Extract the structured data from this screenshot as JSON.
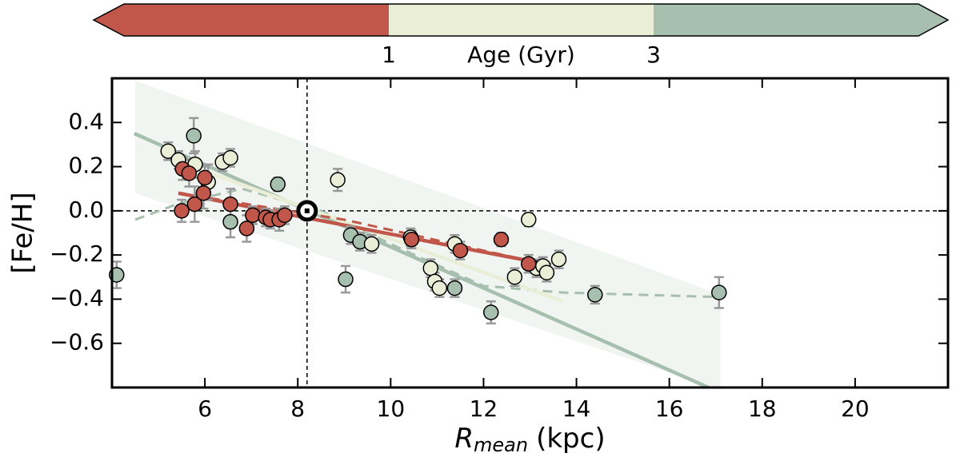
{
  "chart_data": {
    "type": "scatter",
    "xlabel": {
      "symbol": "R",
      "subscript": "mean",
      "unit": "(kpc)"
    },
    "ylabel": "[Fe/H]",
    "xlim": [
      4,
      22
    ],
    "ylim": [
      -0.8,
      0.6
    ],
    "xticks": [
      6,
      8,
      10,
      12,
      14,
      16,
      18,
      20
    ],
    "yticks": [
      -0.6,
      -0.4,
      -0.2,
      0.0,
      0.2,
      0.4
    ],
    "yticklabels_note_free": null,
    "colorbar": {
      "label": "Age (Gyr)",
      "colors": [
        "#c0574a",
        "#ebeed6",
        "#a6bfaf"
      ],
      "ticks": [
        1,
        3
      ]
    },
    "reference": {
      "x": 8.2,
      "y": 0
    },
    "sun": [
      8.2,
      0
    ],
    "band": {
      "color": "#e8eeea",
      "x": [
        4.5,
        17.1
      ],
      "lower": [
        0.08,
        -0.81
      ],
      "upper": [
        0.59,
        -0.38
      ]
    },
    "fits": [
      {
        "color": "#a6bfaf",
        "dash": false,
        "x": [
          4.48,
          16.95
        ],
        "values": [
          0.35,
          -0.81
        ]
      },
      {
        "color": "#a6bfaf",
        "dash": true,
        "x": [
          4.5,
          5.4,
          6.8,
          8.5,
          10.2,
          12.0,
          13.7,
          17.0
        ],
        "values": [
          -0.04,
          0.03,
          0.1,
          0.0,
          -0.17,
          -0.34,
          -0.37,
          -0.39
        ]
      },
      {
        "color": "#ebeed6",
        "dash": false,
        "x": [
          5.21,
          13.71
        ],
        "values": [
          0.24,
          -0.41
        ]
      },
      {
        "color": "#c0574a",
        "dash": true,
        "x": [
          5.43,
          9.0,
          13.07
        ],
        "values": [
          0.08,
          -0.04,
          -0.23
        ]
      },
      {
        "color": "#c0574a",
        "dash": false,
        "x": [
          5.43,
          13.07
        ],
        "values": [
          0.08,
          -0.23
        ]
      }
    ],
    "series": [
      {
        "color": "#a6bfaf",
        "x": [
          4.1,
          5.76,
          6.55,
          7.57,
          9.03,
          9.14,
          9.34,
          11.38,
          12.16,
          14.4,
          17.07
        ],
        "values": [
          -0.29,
          0.34,
          -0.05,
          0.12,
          -0.31,
          -0.11,
          -0.14,
          -0.35,
          -0.46,
          -0.38,
          -0.37
        ],
        "errors": [
          0.06,
          0.08,
          0.07,
          0.03,
          0.06,
          0.04,
          0.04,
          0.04,
          0.05,
          0.04,
          0.07
        ]
      },
      {
        "color": "#ebeed6",
        "x": [
          5.21,
          5.43,
          5.79,
          6.07,
          6.38,
          6.55,
          8.86,
          9.59,
          10.43,
          10.86,
          10.95,
          11.05,
          11.38,
          12.67,
          12.97,
          13.14,
          13.28,
          13.36,
          13.62
        ],
        "values": [
          0.27,
          0.23,
          0.21,
          0.13,
          0.22,
          0.24,
          0.14,
          -0.15,
          -0.12,
          -0.26,
          -0.32,
          -0.35,
          -0.15,
          -0.3,
          -0.04,
          -0.26,
          -0.25,
          -0.28,
          -0.22
        ],
        "errors": [
          0.04,
          0.04,
          0.06,
          0.08,
          0.04,
          0.04,
          0.05,
          0.04,
          0.04,
          0.04,
          0.04,
          0.04,
          0.04,
          0.04,
          0.03,
          0.04,
          0.04,
          0.04,
          0.04
        ]
      },
      {
        "color": "#c0574a",
        "x": [
          5.5,
          5.52,
          5.66,
          5.78,
          5.97,
          6.0,
          6.55,
          6.9,
          7.03,
          7.31,
          7.41,
          7.6,
          7.72,
          10.45,
          11.5,
          12.38,
          12.97
        ],
        "values": [
          0.0,
          0.19,
          0.17,
          0.03,
          0.08,
          0.15,
          0.03,
          -0.08,
          -0.02,
          -0.03,
          -0.04,
          -0.04,
          -0.02,
          -0.13,
          -0.18,
          -0.13,
          -0.24
        ],
        "errors": [
          0.05,
          0.05,
          0.06,
          0.08,
          0.07,
          0.05,
          0.07,
          0.06,
          0.04,
          0.04,
          0.04,
          0.05,
          0.04,
          0.04,
          0.04,
          0.03,
          0.04
        ]
      }
    ]
  }
}
